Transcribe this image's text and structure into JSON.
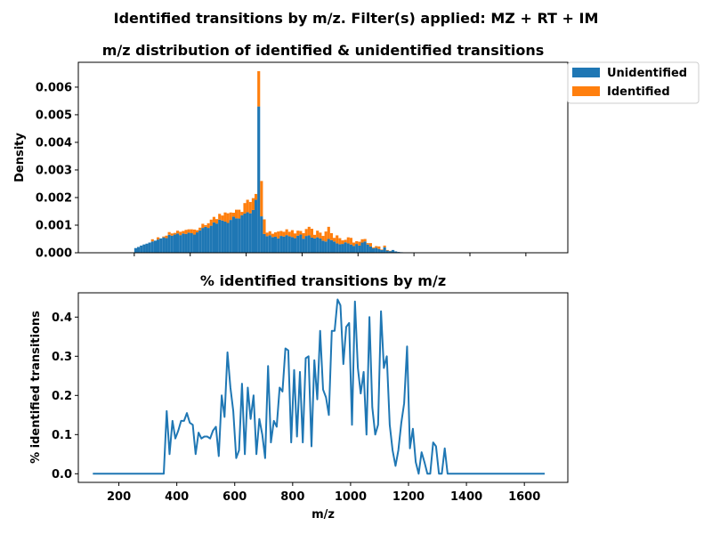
{
  "figure": {
    "suptitle": "Identified transitions by m/z. Filter(s) applied: MZ + RT + IM"
  },
  "chart_data": [
    {
      "type": "bar",
      "title": "m/z distribution of identified & unidentified transitions",
      "xlabel": "",
      "ylabel": "Density",
      "xlim": [
        0,
        1750
      ],
      "ylim": [
        0,
        0.0069
      ],
      "yticks": [
        "0.000",
        "0.001",
        "0.002",
        "0.003",
        "0.004",
        "0.005",
        "0.006"
      ],
      "bin_edges_start": 200,
      "bin_width": 10,
      "legend_position": "top-right outside",
      "series": [
        {
          "name": "Unidentified",
          "color": "#1f77b4",
          "values": [
            0.00017,
            0.00021,
            0.00026,
            0.0003,
            0.00033,
            0.00037,
            0.00041,
            0.00044,
            0.00048,
            0.00052,
            0.00056,
            0.00053,
            0.00065,
            0.00062,
            0.00066,
            0.0007,
            0.00064,
            0.0007,
            0.00068,
            0.00073,
            0.00071,
            0.00066,
            0.00074,
            0.00081,
            0.0009,
            0.00094,
            0.0009,
            0.00098,
            0.0011,
            0.00106,
            0.0012,
            0.00117,
            0.00113,
            0.00108,
            0.00119,
            0.00131,
            0.00125,
            0.00124,
            0.00136,
            0.00142,
            0.00147,
            0.00143,
            0.00155,
            0.00192,
            0.0053,
            0.00132,
            0.00068,
            0.0006,
            0.00063,
            0.00057,
            0.00058,
            0.00052,
            0.00061,
            0.00059,
            0.00064,
            0.0006,
            0.00057,
            0.00053,
            0.00062,
            0.00066,
            0.00051,
            0.00061,
            0.00063,
            0.00055,
            0.00052,
            0.00056,
            0.00052,
            0.00044,
            0.00041,
            0.0005,
            0.00046,
            0.00041,
            0.00034,
            0.00031,
            0.00032,
            0.00038,
            0.00034,
            0.0003,
            0.00025,
            0.00032,
            0.00026,
            0.00037,
            0.00041,
            0.0003,
            0.00023,
            0.00016,
            0.00018,
            0.00014,
            0.0001,
            0.0002,
            8e-05,
            6e-05,
            0.0001,
            5e-05,
            3e-05,
            2e-05,
            1e-05,
            0,
            0,
            0,
            0,
            0,
            0,
            0,
            0,
            0,
            0,
            0,
            0,
            0,
            0,
            0,
            0,
            0,
            0,
            0,
            0,
            0,
            0,
            0,
            0,
            0,
            0,
            0,
            0,
            0,
            0,
            0,
            0,
            0,
            0,
            0,
            0,
            0,
            0,
            0,
            0,
            0,
            0,
            0,
            0,
            0,
            0,
            0,
            0,
            0,
            0
          ]
        },
        {
          "name": "Identified",
          "color": "#ff7f0e",
          "values": [
            0,
            0,
            0,
            0,
            0,
            0,
            8e-05,
            0,
            8e-05,
            0,
            3e-05,
            9e-05,
            0.0001,
            8e-05,
            6e-05,
            0.0001,
            0.00012,
            9e-05,
            0.00015,
            0.00012,
            0.00014,
            0.00018,
            8e-05,
            0.0001,
            0.00015,
            6e-05,
            0.00017,
            0.00022,
            0.0002,
            0.00016,
            0.00021,
            0.00018,
            0.00033,
            0.00035,
            0.00027,
            0.00014,
            0.00031,
            0.00032,
            0.00012,
            0.00038,
            0.00045,
            0.00041,
            0.00043,
            0.00021,
            0.00128,
            0.00128,
            0.00053,
            0.00013,
            0.00015,
            0.00012,
            0.00016,
            0.00025,
            0.00018,
            0.00017,
            0.00021,
            0.00016,
            0.00025,
            0.00017,
            0.00018,
            0.00013,
            0.0002,
            0.00025,
            0.00031,
            0.00032,
            0.00013,
            0.00024,
            0.00021,
            0.00017,
            0.00036,
            0.00044,
            0.00025,
            0.00013,
            0.00029,
            0.00022,
            0.00013,
            9e-05,
            0.00022,
            0.00024,
            0.00012,
            0.0001,
            0.00014,
            0.00012,
            9e-05,
            5e-05,
            0.00012,
            3e-05,
            6e-05,
            9e-05,
            2e-05,
            6e-05,
            2e-05,
            1e-05,
            0,
            0,
            0,
            0,
            0,
            0,
            0,
            0,
            0,
            0,
            0,
            0,
            0,
            0,
            0,
            0,
            0,
            0,
            0,
            0,
            0,
            0,
            0,
            0,
            0,
            0,
            0,
            0,
            0,
            0,
            0,
            0,
            0,
            0,
            0,
            0,
            0,
            0,
            0,
            0,
            0,
            0,
            0,
            0,
            0,
            0,
            0,
            0,
            0,
            0,
            0,
            0,
            0,
            0,
            0,
            0,
            0,
            0
          ]
        }
      ]
    },
    {
      "type": "line",
      "title": "% identified transitions by m/z",
      "xlabel": "m/z",
      "ylabel": "% identified transitions",
      "xlim": [
        60,
        1750
      ],
      "ylim": [
        -0.022,
        0.462
      ],
      "xticks": [
        "200",
        "400",
        "600",
        "800",
        "1000",
        "1200",
        "1400",
        "1600"
      ],
      "yticks": [
        "0.0",
        "0.1",
        "0.2",
        "0.3",
        "0.4"
      ],
      "series": [
        {
          "name": "",
          "color": "#1f77b4",
          "x": [
            110,
            355,
            365,
            375,
            385,
            395,
            405,
            415,
            425,
            435,
            445,
            455,
            465,
            475,
            485,
            495,
            505,
            515,
            525,
            535,
            545,
            555,
            565,
            575,
            585,
            595,
            605,
            615,
            625,
            635,
            645,
            655,
            665,
            675,
            685,
            695,
            705,
            715,
            725,
            735,
            745,
            755,
            765,
            775,
            785,
            795,
            805,
            815,
            825,
            835,
            845,
            855,
            865,
            875,
            885,
            895,
            905,
            915,
            925,
            935,
            945,
            955,
            965,
            975,
            985,
            995,
            1005,
            1015,
            1025,
            1035,
            1045,
            1055,
            1065,
            1075,
            1085,
            1095,
            1105,
            1115,
            1125,
            1135,
            1145,
            1155,
            1165,
            1175,
            1185,
            1195,
            1205,
            1215,
            1225,
            1235,
            1245,
            1255,
            1265,
            1275,
            1285,
            1295,
            1305,
            1315,
            1325,
            1335,
            1670
          ],
          "values": [
            0,
            0,
            0.16,
            0.05,
            0.135,
            0.09,
            0.11,
            0.135,
            0.135,
            0.155,
            0.13,
            0.125,
            0.05,
            0.105,
            0.09,
            0.095,
            0.095,
            0.09,
            0.11,
            0.12,
            0.045,
            0.2,
            0.145,
            0.31,
            0.22,
            0.16,
            0.04,
            0.06,
            0.23,
            0.05,
            0.22,
            0.14,
            0.2,
            0.05,
            0.14,
            0.1,
            0.04,
            0.275,
            0.08,
            0.135,
            0.12,
            0.22,
            0.21,
            0.32,
            0.315,
            0.08,
            0.265,
            0.095,
            0.26,
            0.08,
            0.295,
            0.3,
            0.07,
            0.29,
            0.19,
            0.365,
            0.215,
            0.195,
            0.15,
            0.365,
            0.365,
            0.445,
            0.43,
            0.28,
            0.375,
            0.385,
            0.125,
            0.44,
            0.27,
            0.205,
            0.26,
            0.1,
            0.4,
            0.17,
            0.1,
            0.125,
            0.415,
            0.27,
            0.3,
            0.125,
            0.06,
            0.02,
            0.06,
            0.13,
            0.18,
            0.325,
            0.065,
            0.115,
            0.03,
            0.0,
            0.055,
            0.03,
            0.0,
            0.0,
            0.08,
            0.07,
            0.0,
            0.0,
            0.065,
            0.0,
            0.0
          ]
        }
      ]
    }
  ]
}
